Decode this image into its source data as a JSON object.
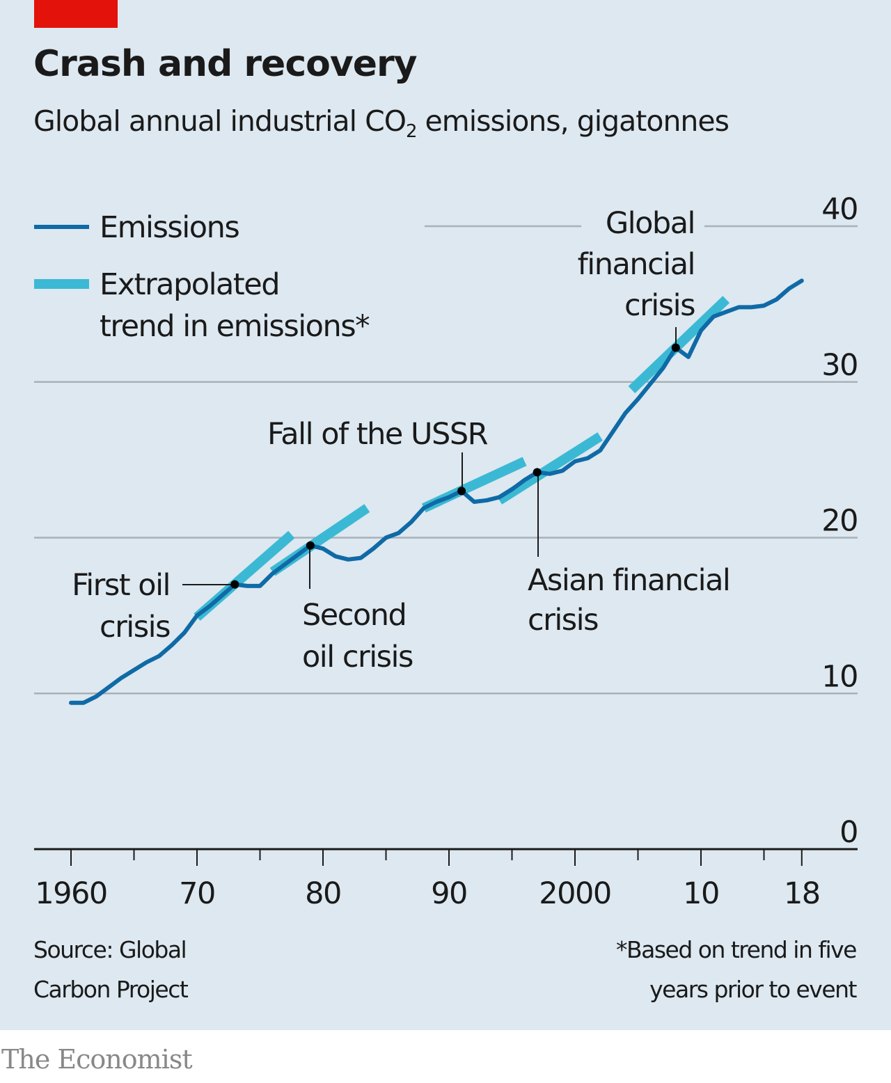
{
  "header": {
    "title": "Crash and recovery",
    "subtitle_pre": "Global annual industrial CO",
    "subtitle_sub": "2",
    "subtitle_post": " emissions, gigatonnes"
  },
  "footer": {
    "source_line1": "Source: Global",
    "source_line2": "Carbon Project",
    "note_line1": "*Based on trend in five",
    "note_line2": "years prior to event",
    "brand": "The Economist"
  },
  "colors": {
    "background": "#dde8f0",
    "accent_red": "#e3120b",
    "emissions": "#0f6aa6",
    "trend": "#3bb9d4",
    "grid": "#a9b1b7",
    "axis": "#1a1a1a"
  },
  "chart_data": {
    "type": "line",
    "title": "Crash and recovery",
    "subtitle": "Global annual industrial CO2 emissions, gigatonnes",
    "xlabel": "",
    "ylabel": "",
    "xlim": [
      1960,
      2018
    ],
    "ylim": [
      0,
      40
    ],
    "grid": true,
    "y_ticks": [
      0,
      10,
      20,
      30,
      40
    ],
    "y_tick_labels": [
      "0",
      "10",
      "20",
      "30",
      "40"
    ],
    "x_major_ticks": [
      1960,
      1970,
      1980,
      1990,
      2000,
      2010,
      2018
    ],
    "x_tick_labels": [
      "1960",
      "70",
      "80",
      "90",
      "2000",
      "10",
      "18"
    ],
    "x_minor_ticks": [
      1965,
      1975,
      1985,
      1995,
      2005,
      2015
    ],
    "legend": [
      {
        "label": "Emissions",
        "series": "emissions"
      },
      {
        "label_line1": "Extrapolated",
        "label_line2": "trend in emissions*",
        "series": "trend"
      }
    ],
    "legend_position": "top-left",
    "series": [
      {
        "name": "Emissions",
        "x": [
          1960,
          1961,
          1962,
          1963,
          1964,
          1965,
          1966,
          1967,
          1968,
          1969,
          1970,
          1971,
          1972,
          1973,
          1974,
          1975,
          1976,
          1977,
          1978,
          1979,
          1980,
          1981,
          1982,
          1983,
          1984,
          1985,
          1986,
          1987,
          1988,
          1989,
          1990,
          1991,
          1992,
          1993,
          1994,
          1995,
          1996,
          1997,
          1998,
          1999,
          2000,
          2001,
          2002,
          2003,
          2004,
          2005,
          2006,
          2007,
          2008,
          2009,
          2010,
          2011,
          2012,
          2013,
          2014,
          2015,
          2016,
          2017,
          2018
        ],
        "values": [
          9.4,
          9.4,
          9.8,
          10.4,
          11.0,
          11.5,
          12.0,
          12.4,
          13.1,
          13.9,
          15.0,
          15.6,
          16.3,
          17.0,
          16.9,
          16.9,
          17.7,
          18.3,
          18.9,
          19.5,
          19.3,
          18.8,
          18.6,
          18.7,
          19.3,
          20.0,
          20.3,
          21.0,
          21.9,
          22.3,
          22.6,
          23.0,
          22.3,
          22.4,
          22.6,
          23.1,
          23.7,
          24.2,
          24.1,
          24.3,
          24.9,
          25.1,
          25.6,
          26.8,
          28.0,
          28.9,
          29.9,
          30.9,
          32.2,
          31.6,
          33.3,
          34.2,
          34.5,
          34.8,
          34.8,
          34.9,
          35.3,
          36.0,
          36.5
        ]
      },
      {
        "name": "Extrapolated trend in emissions*",
        "segments": [
          {
            "event": "First oil crisis",
            "x": [
              1970,
              1977.5
            ],
            "values": [
              14.9,
              20.2
            ]
          },
          {
            "event": "Second oil crisis",
            "x": [
              1976,
              1983.5
            ],
            "values": [
              17.8,
              21.9
            ]
          },
          {
            "event": "Fall of the USSR",
            "x": [
              1988,
              1996
            ],
            "values": [
              21.9,
              24.9
            ]
          },
          {
            "event": "Asian financial crisis",
            "x": [
              1994,
              2002
            ],
            "values": [
              22.4,
              26.5
            ]
          },
          {
            "event": "Global financial crisis",
            "x": [
              2004.5,
              2012
            ],
            "values": [
              29.5,
              35.3
            ]
          }
        ]
      }
    ],
    "annotations": [
      {
        "id": "first-oil",
        "line1": "First oil",
        "line2": "crisis",
        "x": 1973,
        "y": 17.0
      },
      {
        "id": "second-oil",
        "line1": "Second",
        "line2": "oil crisis",
        "x": 1979,
        "y": 19.5
      },
      {
        "id": "ussr",
        "line1": "Fall of the USSR",
        "x": 1991,
        "y": 23.0
      },
      {
        "id": "asian",
        "line1": "Asian financial",
        "line2": "crisis",
        "x": 1997,
        "y": 24.2
      },
      {
        "id": "global",
        "line1": "Global",
        "line2": "financial",
        "line3": "crisis",
        "x": 2008,
        "y": 32.2
      }
    ]
  }
}
